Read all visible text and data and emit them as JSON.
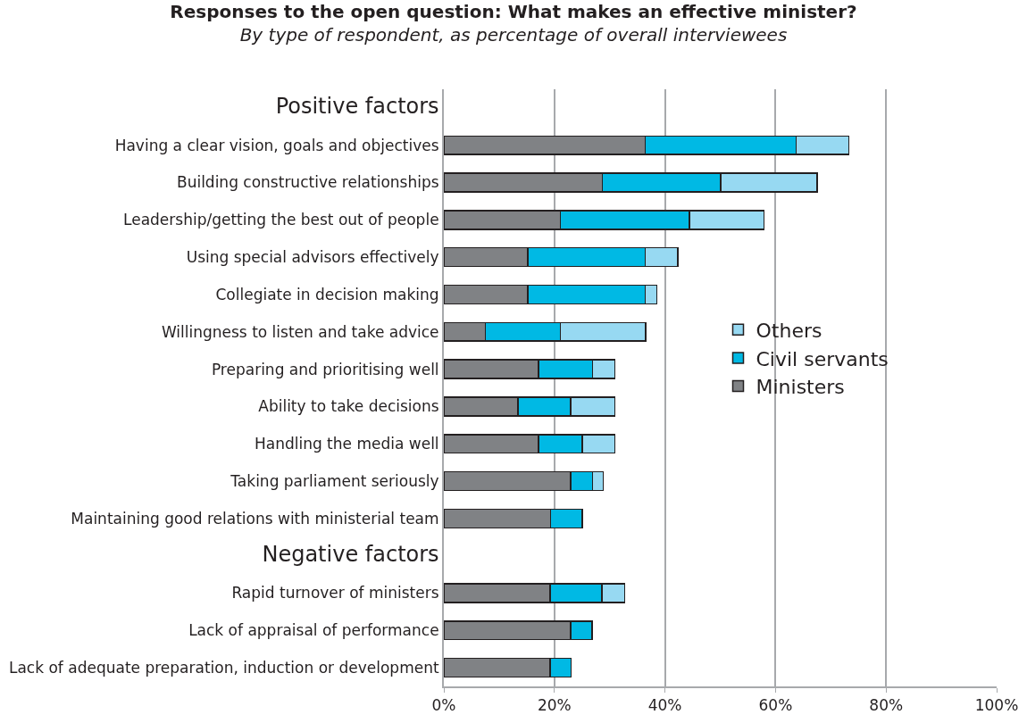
{
  "chart_data": {
    "type": "bar",
    "orientation": "horizontal",
    "stacked": true,
    "title": "Responses to the open question: What makes an effective minister?",
    "subtitle": "By type of respondent, as percentage of overall interviewees",
    "categories": [
      "Positive factors",
      "Having a clear vision, goals and objectives",
      "Building constructive relationships",
      "Leadership/getting the best out of people",
      "Using special advisors effectively",
      "Collegiate in decision making",
      "Willingness to listen and take advice",
      "Preparing and prioritising well",
      "Ability to take decisions",
      "Handling the media well",
      "Taking parliament seriously",
      "Maintaining good relations with ministerial team",
      "Negative factors",
      "Rapid turnover of ministers",
      "Lack of appraisal of performance",
      "Lack of adequate preparation, induction or development"
    ],
    "series": [
      {
        "name": "Ministers",
        "color": "#808285",
        "values": [
          null,
          36.4,
          28.7,
          21.1,
          15.2,
          15.2,
          7.5,
          17.1,
          13.4,
          17.1,
          22.9,
          19.3,
          null,
          19.2,
          22.9,
          19.2
        ]
      },
      {
        "name": "Civil servants",
        "color": "#00b9e4",
        "values": [
          null,
          27.3,
          21.4,
          23.3,
          21.2,
          21.2,
          13.6,
          9.8,
          9.5,
          7.9,
          4.0,
          5.7,
          null,
          9.4,
          3.9,
          3.8
        ]
      },
      {
        "name": "Others",
        "color": "#97d9f2",
        "values": [
          null,
          9.6,
          17.4,
          13.5,
          5.9,
          2.1,
          15.4,
          4.0,
          8.0,
          5.9,
          1.9,
          null,
          null,
          4.1,
          null,
          null
        ]
      }
    ],
    "xlim": [
      0,
      100
    ],
    "xticks": [
      {
        "value": 0,
        "label": "0%"
      },
      {
        "value": 20,
        "label": "20%"
      },
      {
        "value": 40,
        "label": "40%"
      },
      {
        "value": 60,
        "label": "60%"
      },
      {
        "value": 80,
        "label": "80%"
      },
      {
        "value": 100,
        "label": "100%"
      }
    ],
    "grid": "x",
    "legend": "right"
  }
}
